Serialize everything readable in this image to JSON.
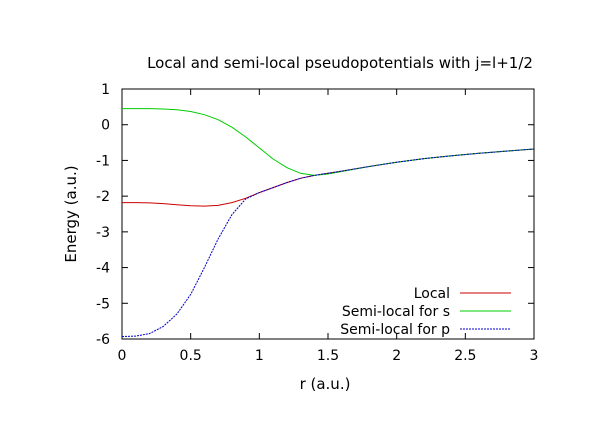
{
  "chart_data": {
    "type": "line",
    "title": "Local and semi-local pseudopotentials with j=l+1/2",
    "xlabel": "r (a.u.)",
    "ylabel": "Energy (a.u.)",
    "xlim": [
      0,
      3
    ],
    "ylim": [
      -6,
      1
    ],
    "xticks": [
      0,
      0.5,
      1,
      1.5,
      2,
      2.5,
      3
    ],
    "xtick_labels": [
      "0",
      "0.5",
      "1",
      "1.5",
      "2",
      "2.5",
      "3"
    ],
    "yticks": [
      1,
      0,
      -1,
      -2,
      -3,
      -4,
      -5,
      -6
    ],
    "ytick_labels": [
      "1",
      "0",
      "-1",
      "-2",
      "-3",
      "-4",
      "-5",
      "-6"
    ],
    "grid": false,
    "legend_position": "bottom-right",
    "series": [
      {
        "name": "Local",
        "color": "#cc0000",
        "style": "solid",
        "x": [
          0,
          0.1,
          0.2,
          0.3,
          0.4,
          0.5,
          0.6,
          0.7,
          0.8,
          0.9,
          1.0,
          1.1,
          1.2,
          1.3,
          1.4,
          1.5,
          1.6,
          1.8,
          2.0,
          2.2,
          2.4,
          2.6,
          2.8,
          3.0
        ],
        "y": [
          -2.18,
          -2.18,
          -2.19,
          -2.21,
          -2.24,
          -2.27,
          -2.28,
          -2.26,
          -2.18,
          -2.06,
          -1.9,
          -1.76,
          -1.62,
          -1.5,
          -1.42,
          -1.36,
          -1.3,
          -1.17,
          -1.05,
          -0.95,
          -0.87,
          -0.8,
          -0.74,
          -0.68
        ]
      },
      {
        "name": "Semi-local for s",
        "color": "#00cc00",
        "style": "solid",
        "x": [
          0,
          0.1,
          0.2,
          0.3,
          0.4,
          0.5,
          0.6,
          0.7,
          0.8,
          0.9,
          1.0,
          1.1,
          1.2,
          1.3,
          1.4,
          1.5,
          1.6,
          1.8,
          2.0,
          2.2,
          2.4,
          2.6,
          2.8,
          3.0
        ],
        "y": [
          0.45,
          0.45,
          0.45,
          0.44,
          0.42,
          0.37,
          0.28,
          0.14,
          -0.07,
          -0.34,
          -0.65,
          -0.96,
          -1.2,
          -1.36,
          -1.42,
          -1.38,
          -1.31,
          -1.17,
          -1.05,
          -0.95,
          -0.87,
          -0.8,
          -0.74,
          -0.68
        ]
      },
      {
        "name": "Semi-local for p",
        "color": "#0000cc",
        "style": "dotted",
        "x": [
          0,
          0.1,
          0.2,
          0.3,
          0.4,
          0.5,
          0.6,
          0.7,
          0.8,
          0.9,
          1.0,
          1.1,
          1.2,
          1.3,
          1.4,
          1.5,
          1.6,
          1.8,
          2.0,
          2.2,
          2.4,
          2.6,
          2.8,
          3.0
        ],
        "y": [
          -5.93,
          -5.92,
          -5.85,
          -5.65,
          -5.3,
          -4.75,
          -4.0,
          -3.2,
          -2.52,
          -2.08,
          -1.9,
          -1.76,
          -1.62,
          -1.5,
          -1.42,
          -1.36,
          -1.3,
          -1.17,
          -1.05,
          -0.95,
          -0.87,
          -0.8,
          -0.74,
          -0.68
        ]
      }
    ]
  }
}
